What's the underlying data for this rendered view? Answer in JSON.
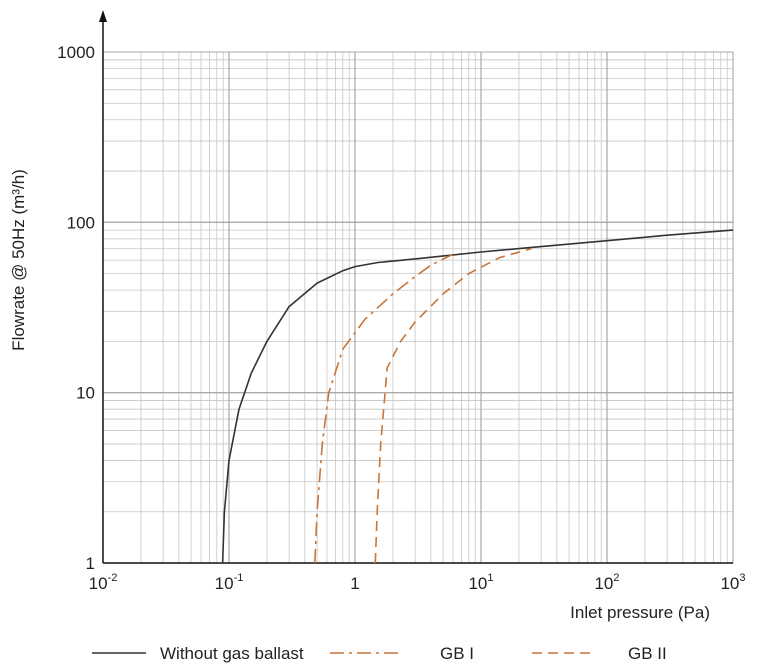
{
  "chart_data": {
    "type": "line",
    "title": "",
    "xlabel": "Inlet pressure (Pa)",
    "ylabel": "Flowrate @ 50Hz (m³/h)",
    "xscale": "log",
    "yscale": "log",
    "xlim": [
      0.01,
      1000
    ],
    "ylim": [
      1,
      1000
    ],
    "grid": true,
    "legend_position": "bottom",
    "x_ticks": [
      {
        "base": "10",
        "exp": "-2",
        "value": 0.01
      },
      {
        "base": "10",
        "exp": "-1",
        "value": 0.1
      },
      {
        "base": "1",
        "exp": "",
        "value": 1
      },
      {
        "base": "10",
        "exp": "1",
        "value": 10
      },
      {
        "base": "10",
        "exp": "2",
        "value": 100
      },
      {
        "base": "10",
        "exp": "3",
        "value": 1000
      }
    ],
    "y_ticks": [
      {
        "label": "1",
        "value": 1
      },
      {
        "label": "10",
        "value": 10
      },
      {
        "label": "100",
        "value": 100
      },
      {
        "label": "1000",
        "value": 1000
      }
    ],
    "series": [
      {
        "name": "Without gas ballast",
        "color": "#333333",
        "dash": "solid",
        "points": [
          [
            0.089,
            1
          ],
          [
            0.092,
            2
          ],
          [
            0.1,
            4
          ],
          [
            0.12,
            8
          ],
          [
            0.15,
            13
          ],
          [
            0.2,
            20
          ],
          [
            0.3,
            32
          ],
          [
            0.5,
            44
          ],
          [
            0.8,
            52
          ],
          [
            1,
            55
          ],
          [
            1.5,
            58
          ],
          [
            3,
            61
          ],
          [
            10,
            67
          ],
          [
            30,
            72
          ],
          [
            100,
            78
          ],
          [
            300,
            84
          ],
          [
            1000,
            90
          ]
        ]
      },
      {
        "name": "GB I",
        "color": "#c8743a",
        "dash": "dashdot",
        "points": [
          [
            0.48,
            1
          ],
          [
            0.5,
            2
          ],
          [
            0.55,
            5
          ],
          [
            0.62,
            10
          ],
          [
            0.8,
            18
          ],
          [
            1.2,
            27
          ],
          [
            2,
            38
          ],
          [
            3,
            48
          ],
          [
            4,
            56
          ],
          [
            6,
            65
          ]
        ]
      },
      {
        "name": "GB II",
        "color": "#c8743a",
        "dash": "dashed",
        "points": [
          [
            1.45,
            1
          ],
          [
            1.5,
            2
          ],
          [
            1.6,
            5
          ],
          [
            1.8,
            14
          ],
          [
            2.3,
            20
          ],
          [
            3,
            26
          ],
          [
            5,
            38
          ],
          [
            8,
            50
          ],
          [
            14,
            62
          ],
          [
            25,
            70
          ]
        ]
      }
    ]
  }
}
